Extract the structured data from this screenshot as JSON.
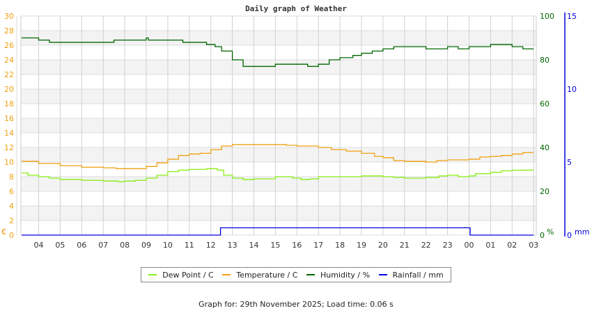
{
  "title": "Daily graph of Weather",
  "legend": [
    {
      "label": "Dew Point / C",
      "color": "#88ee11"
    },
    {
      "label": "Temperature / C",
      "color": "#f0a010"
    },
    {
      "label": "Humidity / %",
      "color": "#006600"
    },
    {
      "label": "Rainfall / mm",
      "color": "#0000dd"
    }
  ],
  "footer": "Graph for: 29th November 2025; Load time: 0.06 s",
  "chart_data": {
    "type": "line",
    "title": "Daily graph of Weather",
    "x_ticks": [
      "04",
      "05",
      "06",
      "07",
      "08",
      "09",
      "10",
      "11",
      "12",
      "13",
      "14",
      "15",
      "16",
      "17",
      "18",
      "19",
      "20",
      "21",
      "22",
      "23",
      "00",
      "01",
      "02",
      "03"
    ],
    "axes": {
      "left": {
        "label": "C",
        "ticks": [
          0,
          2,
          4,
          6,
          8,
          10,
          12,
          14,
          16,
          18,
          20,
          22,
          24,
          26,
          28,
          30
        ],
        "range": [
          0,
          30
        ],
        "color": "#f0a010"
      },
      "right1": {
        "label": "%",
        "ticks": [
          0,
          20,
          40,
          60,
          80,
          100
        ],
        "range": [
          0,
          100
        ],
        "color": "#006600"
      },
      "right2": {
        "label": "mm",
        "ticks": [
          0,
          5,
          10,
          15
        ],
        "range": [
          0,
          15
        ],
        "color": "#0000dd"
      }
    },
    "series": [
      {
        "name": "Dew Point / C",
        "axis": "left",
        "color": "#88ee11",
        "points": [
          [
            3.2,
            8.5
          ],
          [
            3.5,
            8.2
          ],
          [
            4,
            8.0
          ],
          [
            4.5,
            7.8
          ],
          [
            5,
            7.6
          ],
          [
            6,
            7.5
          ],
          [
            7,
            7.4
          ],
          [
            7.7,
            7.3
          ],
          [
            8,
            7.4
          ],
          [
            8.5,
            7.5
          ],
          [
            9,
            7.8
          ],
          [
            9.5,
            8.2
          ],
          [
            10,
            8.7
          ],
          [
            10.5,
            8.9
          ],
          [
            11,
            9.0
          ],
          [
            11.8,
            9.1
          ],
          [
            12.3,
            8.9
          ],
          [
            12.6,
            8.2
          ],
          [
            13,
            7.8
          ],
          [
            13.5,
            7.6
          ],
          [
            14,
            7.7
          ],
          [
            14.7,
            7.7
          ],
          [
            15,
            8.0
          ],
          [
            15.8,
            7.8
          ],
          [
            16.2,
            7.6
          ],
          [
            16.6,
            7.7
          ],
          [
            17,
            8.0
          ],
          [
            18,
            8.0
          ],
          [
            19,
            8.1
          ],
          [
            20,
            8.0
          ],
          [
            20.5,
            7.9
          ],
          [
            21,
            7.8
          ],
          [
            21.7,
            7.8
          ],
          [
            22,
            7.9
          ],
          [
            22.6,
            8.1
          ],
          [
            23,
            8.2
          ],
          [
            23.5,
            8.0
          ],
          [
            24,
            8.1
          ],
          [
            24.3,
            8.4
          ],
          [
            25,
            8.6
          ],
          [
            25.5,
            8.8
          ],
          [
            26,
            8.9
          ],
          [
            27,
            8.9
          ]
        ]
      },
      {
        "name": "Temperature / C",
        "axis": "left",
        "color": "#f0a010",
        "points": [
          [
            3.2,
            10.1
          ],
          [
            4,
            9.8
          ],
          [
            5,
            9.5
          ],
          [
            6,
            9.3
          ],
          [
            7,
            9.2
          ],
          [
            7.6,
            9.1
          ],
          [
            8.5,
            9.1
          ],
          [
            9,
            9.4
          ],
          [
            9.5,
            9.9
          ],
          [
            10,
            10.4
          ],
          [
            10.5,
            10.9
          ],
          [
            11,
            11.1
          ],
          [
            11.5,
            11.2
          ],
          [
            12,
            11.7
          ],
          [
            12.5,
            12.2
          ],
          [
            13,
            12.4
          ],
          [
            14,
            12.4
          ],
          [
            15.5,
            12.3
          ],
          [
            16,
            12.2
          ],
          [
            17,
            12.0
          ],
          [
            17.6,
            11.7
          ],
          [
            18.3,
            11.5
          ],
          [
            19,
            11.2
          ],
          [
            19.6,
            10.8
          ],
          [
            20,
            10.6
          ],
          [
            20.5,
            10.2
          ],
          [
            21,
            10.1
          ],
          [
            22,
            10.0
          ],
          [
            22.5,
            10.2
          ],
          [
            23,
            10.3
          ],
          [
            24,
            10.4
          ],
          [
            24.5,
            10.7
          ],
          [
            25,
            10.8
          ],
          [
            25.5,
            10.9
          ],
          [
            26,
            11.1
          ],
          [
            26.5,
            11.3
          ],
          [
            27,
            11.3
          ]
        ]
      },
      {
        "name": "Humidity / %",
        "axis": "right1",
        "color": "#006600",
        "points": [
          [
            3.2,
            90
          ],
          [
            4,
            89
          ],
          [
            4.5,
            88
          ],
          [
            5,
            88
          ],
          [
            6,
            88
          ],
          [
            7,
            88
          ],
          [
            7.5,
            89
          ],
          [
            8,
            89
          ],
          [
            9,
            90
          ],
          [
            9.1,
            89
          ],
          [
            10,
            89
          ],
          [
            10.7,
            88
          ],
          [
            11,
            88
          ],
          [
            11.8,
            87
          ],
          [
            12.2,
            86
          ],
          [
            12.5,
            84
          ],
          [
            13,
            80
          ],
          [
            13.5,
            77
          ],
          [
            14,
            77
          ],
          [
            14.5,
            77
          ],
          [
            15,
            78
          ],
          [
            16,
            78
          ],
          [
            16.5,
            77
          ],
          [
            17,
            78
          ],
          [
            17.5,
            80
          ],
          [
            18,
            81
          ],
          [
            18.6,
            82
          ],
          [
            19,
            83
          ],
          [
            19.5,
            84
          ],
          [
            20,
            85
          ],
          [
            20.5,
            86
          ],
          [
            21,
            86
          ],
          [
            21.6,
            86
          ],
          [
            22,
            85
          ],
          [
            23,
            86
          ],
          [
            23.5,
            85
          ],
          [
            24,
            86
          ],
          [
            25,
            87
          ],
          [
            25.5,
            87
          ],
          [
            26,
            86
          ],
          [
            26.5,
            85
          ],
          [
            27,
            85
          ]
        ]
      },
      {
        "name": "Rainfall / mm",
        "axis": "right2",
        "color": "#0000dd",
        "points": [
          [
            3.2,
            0
          ],
          [
            12.4,
            0
          ],
          [
            12.45,
            0.5
          ],
          [
            24.0,
            0.5
          ],
          [
            24.05,
            0
          ],
          [
            27,
            0
          ]
        ]
      }
    ]
  }
}
